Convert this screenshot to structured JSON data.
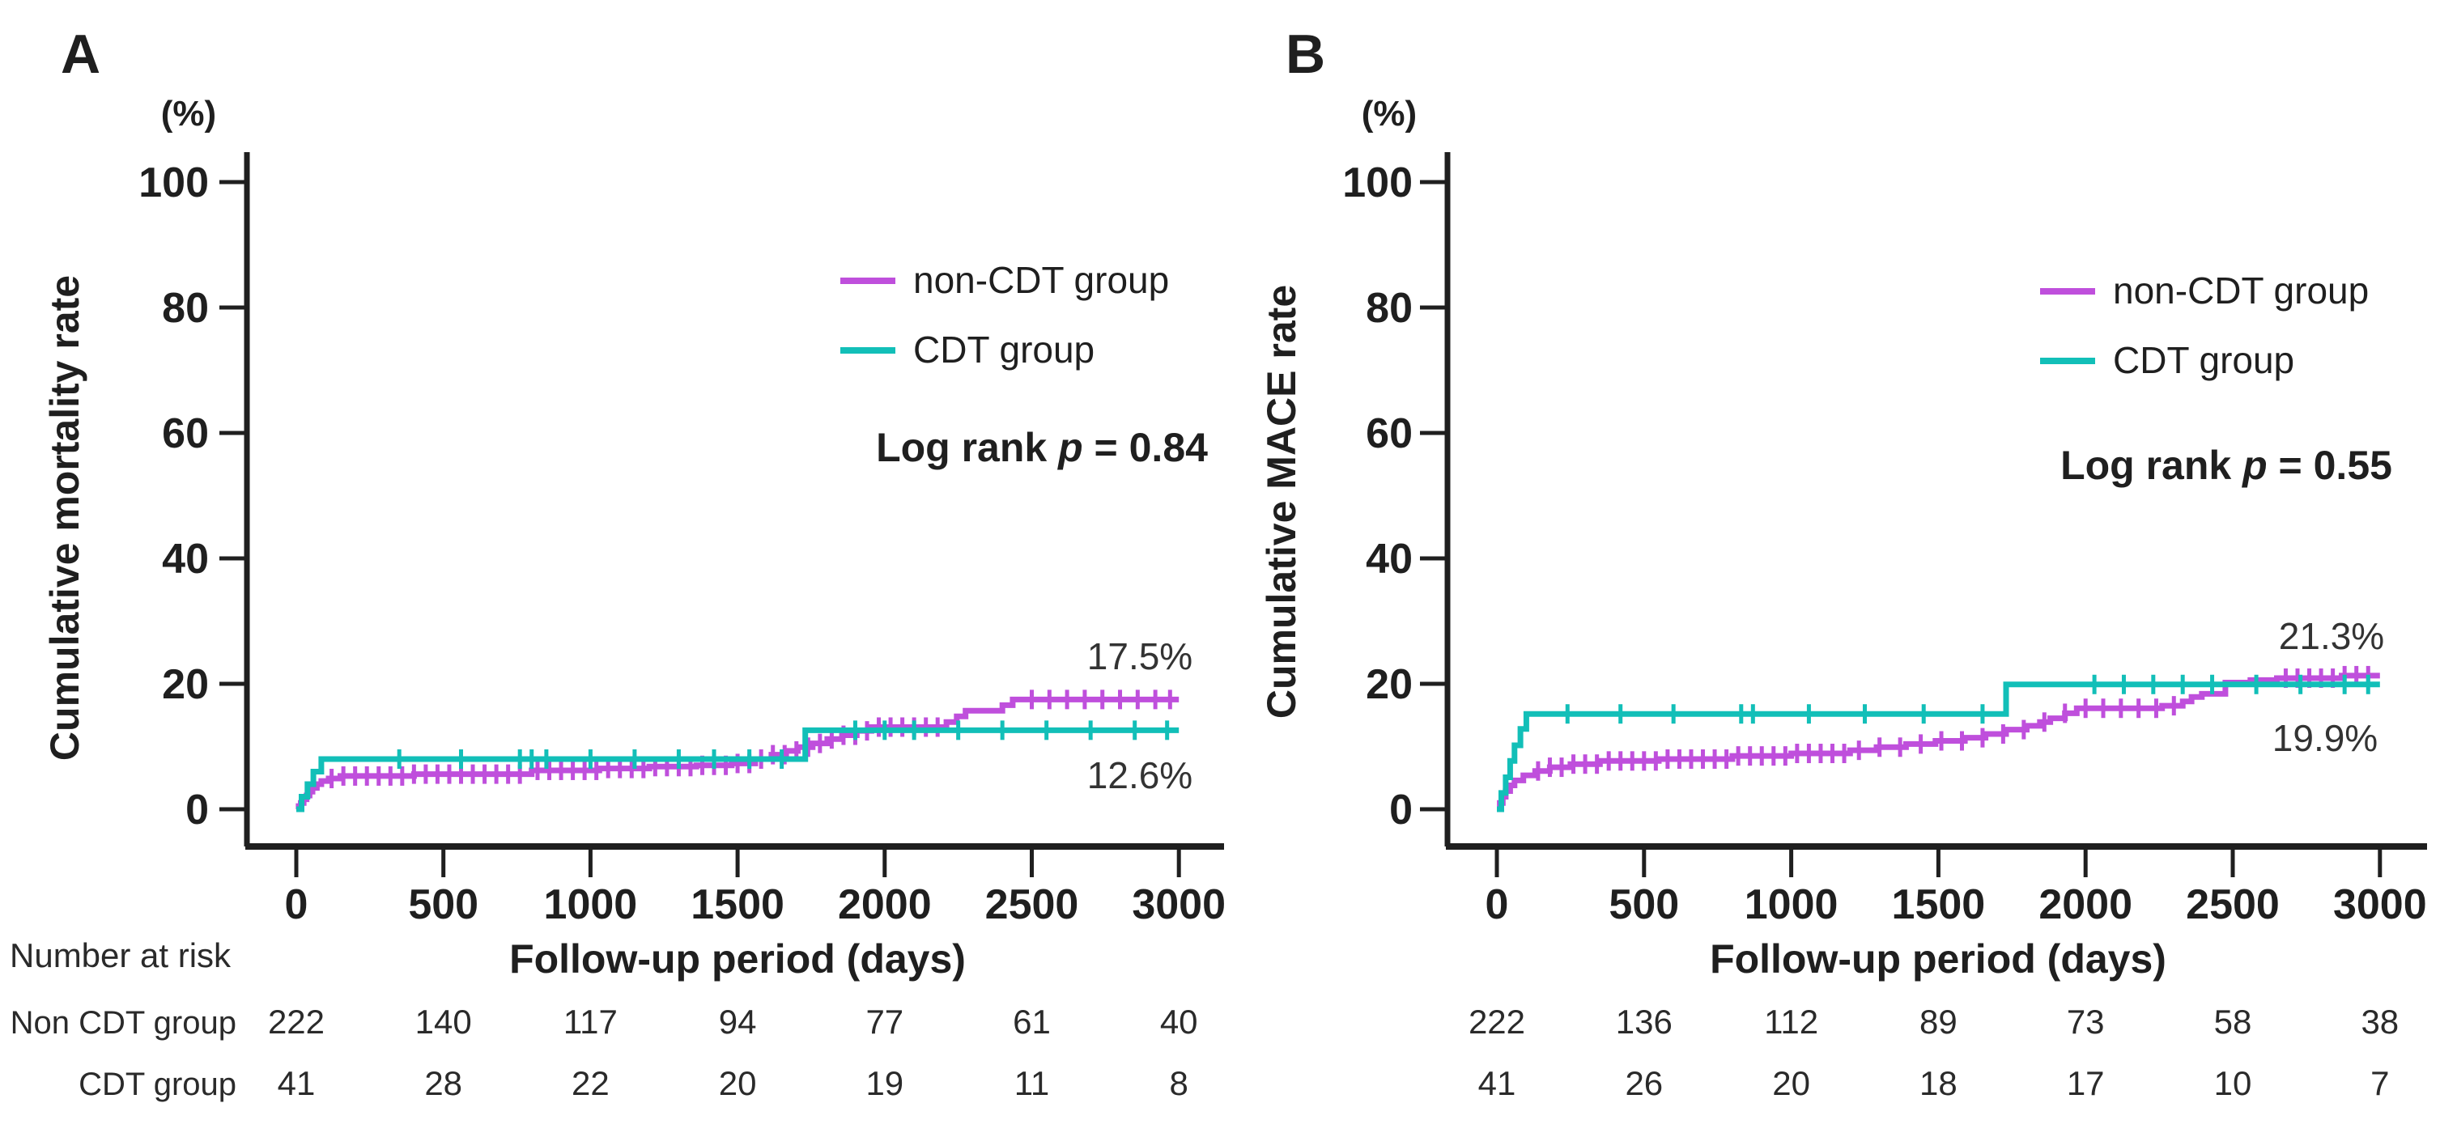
{
  "chart_data": [
    {
      "type": "line",
      "subtype": "kaplan-meier-step",
      "panel_label": "A",
      "ylabel": "Cumulative mortality rate",
      "y_axis_unit": "(%)",
      "xlabel": "Follow-up period  (days)",
      "xlim": [
        0,
        3000
      ],
      "ylim": [
        0,
        100
      ],
      "xticks": [
        0,
        500,
        1000,
        1500,
        2000,
        2500,
        3000
      ],
      "yticks": [
        0,
        20,
        40,
        60,
        80,
        100
      ],
      "grid": false,
      "legend_position": "top-right",
      "log_rank": {
        "prefix": "Log rank ",
        "p": "p",
        "rest": " = 0.84"
      },
      "series": [
        {
          "name": "non-CDT group",
          "color": "#bf4fdc",
          "end_label": "17.5%",
          "steps": [
            [
              0,
              0
            ],
            [
              8,
              0.5
            ],
            [
              15,
              1.0
            ],
            [
              25,
              1.6
            ],
            [
              35,
              2.2
            ],
            [
              45,
              2.8
            ],
            [
              55,
              3.4
            ],
            [
              70,
              4.0
            ],
            [
              85,
              4.5
            ],
            [
              110,
              4.9
            ],
            [
              150,
              5.3
            ],
            [
              400,
              5.6
            ],
            [
              800,
              6.2
            ],
            [
              1030,
              6.5
            ],
            [
              1200,
              6.8
            ],
            [
              1360,
              7.0
            ],
            [
              1480,
              7.3
            ],
            [
              1560,
              8.0
            ],
            [
              1615,
              8.7
            ],
            [
              1665,
              9.3
            ],
            [
              1705,
              9.9
            ],
            [
              1755,
              10.5
            ],
            [
              1805,
              11.2
            ],
            [
              1855,
              11.8
            ],
            [
              1905,
              12.5
            ],
            [
              1955,
              13.1
            ],
            [
              2210,
              13.9
            ],
            [
              2245,
              14.8
            ],
            [
              2275,
              15.7
            ],
            [
              2400,
              16.6
            ],
            [
              2435,
              17.5
            ],
            [
              3000,
              17.5
            ]
          ],
          "censor_days": [
            120,
            160,
            200,
            240,
            280,
            320,
            360,
            400,
            440,
            480,
            520,
            560,
            600,
            640,
            680,
            720,
            760,
            820,
            860,
            900,
            940,
            980,
            1020,
            1060,
            1100,
            1140,
            1180,
            1220,
            1260,
            1300,
            1340,
            1380,
            1420,
            1460,
            1500,
            1540,
            1580,
            1620,
            1660,
            1700,
            1740,
            1780,
            1820,
            1860,
            1900,
            1940,
            1980,
            2020,
            2060,
            2100,
            2140,
            2180,
            2500,
            2560,
            2620,
            2680,
            2740,
            2800,
            2860,
            2920,
            2970
          ]
        },
        {
          "name": "CDT group",
          "color": "#12bfb8",
          "end_label": "12.6%",
          "steps": [
            [
              0,
              0
            ],
            [
              18,
              2.0
            ],
            [
              38,
              4.0
            ],
            [
              58,
              6.0
            ],
            [
              85,
              8.0
            ],
            [
              1730,
              12.6
            ],
            [
              3000,
              12.6
            ]
          ],
          "censor_days": [
            350,
            560,
            760,
            800,
            850,
            1000,
            1150,
            1300,
            1420,
            1540,
            1650,
            1900,
            2000,
            2100,
            2250,
            2400,
            2550,
            2700,
            2850,
            2960
          ]
        }
      ],
      "number_at_risk": {
        "header": "Number at risk",
        "rows": [
          {
            "label": "Non CDT group",
            "values": [
              222,
              140,
              117,
              94,
              77,
              61,
              40
            ]
          },
          {
            "label": "CDT group",
            "values": [
              41,
              28,
              22,
              20,
              19,
              11,
              8
            ]
          }
        ]
      }
    },
    {
      "type": "line",
      "subtype": "kaplan-meier-step",
      "panel_label": "B",
      "ylabel": "Cumulative MACE rate",
      "y_axis_unit": "(%)",
      "xlabel": "Follow-up period  (days)",
      "xlim": [
        0,
        3000
      ],
      "ylim": [
        0,
        100
      ],
      "xticks": [
        0,
        500,
        1000,
        1500,
        2000,
        2500,
        3000
      ],
      "yticks": [
        0,
        20,
        40,
        60,
        80,
        100
      ],
      "grid": false,
      "legend_position": "top-right",
      "log_rank": {
        "prefix": "Log rank ",
        "p": "p",
        "rest": " = 0.55"
      },
      "series": [
        {
          "name": "non-CDT group",
          "color": "#bf4fdc",
          "end_label": "21.3%",
          "steps": [
            [
              0,
              0
            ],
            [
              10,
              1.0
            ],
            [
              20,
              2.0
            ],
            [
              30,
              2.9
            ],
            [
              45,
              3.8
            ],
            [
              60,
              4.6
            ],
            [
              90,
              5.4
            ],
            [
              130,
              6.1
            ],
            [
              180,
              6.7
            ],
            [
              250,
              7.2
            ],
            [
              350,
              7.7
            ],
            [
              550,
              8.0
            ],
            [
              800,
              8.5
            ],
            [
              1000,
              8.9
            ],
            [
              1200,
              9.4
            ],
            [
              1290,
              9.9
            ],
            [
              1390,
              10.4
            ],
            [
              1490,
              10.9
            ],
            [
              1590,
              11.4
            ],
            [
              1660,
              12.0
            ],
            [
              1730,
              12.7
            ],
            [
              1800,
              13.3
            ],
            [
              1845,
              13.9
            ],
            [
              1880,
              14.5
            ],
            [
              1930,
              15.3
            ],
            [
              1970,
              16.1
            ],
            [
              2260,
              16.5
            ],
            [
              2330,
              17.2
            ],
            [
              2360,
              17.9
            ],
            [
              2395,
              18.4
            ],
            [
              2475,
              20.2
            ],
            [
              2560,
              20.6
            ],
            [
              2650,
              20.9
            ],
            [
              2870,
              21.3
            ],
            [
              3000,
              21.3
            ]
          ],
          "censor_days": [
            140,
            180,
            220,
            260,
            300,
            340,
            380,
            420,
            460,
            500,
            540,
            580,
            620,
            660,
            700,
            740,
            780,
            820,
            860,
            900,
            940,
            980,
            1020,
            1060,
            1100,
            1140,
            1180,
            1230,
            1300,
            1370,
            1440,
            1510,
            1580,
            1650,
            1720,
            1790,
            1860,
            1930,
            2000,
            2060,
            2120,
            2180,
            2240,
            2300,
            2680,
            2720,
            2760,
            2800,
            2840,
            2880,
            2920,
            2960
          ]
        },
        {
          "name": "CDT group",
          "color": "#12bfb8",
          "end_label": "19.9%",
          "steps": [
            [
              0,
              0
            ],
            [
              15,
              2.6
            ],
            [
              30,
              5.1
            ],
            [
              45,
              7.7
            ],
            [
              60,
              10.2
            ],
            [
              80,
              12.8
            ],
            [
              100,
              15.2
            ],
            [
              1730,
              19.9
            ],
            [
              3000,
              19.9
            ]
          ],
          "censor_days": [
            240,
            420,
            600,
            830,
            870,
            1060,
            1250,
            1450,
            1650,
            2030,
            2130,
            2230,
            2330,
            2430,
            2580,
            2730,
            2880,
            2960
          ]
        }
      ],
      "number_at_risk": {
        "header": "",
        "rows": [
          {
            "label": "",
            "values": [
              222,
              136,
              112,
              89,
              73,
              58,
              38
            ]
          },
          {
            "label": "",
            "values": [
              41,
              26,
              20,
              18,
              17,
              10,
              7
            ]
          }
        ]
      }
    }
  ]
}
